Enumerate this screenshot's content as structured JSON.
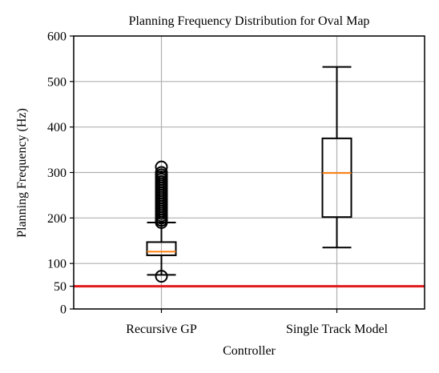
{
  "chart_data": {
    "type": "box",
    "title": "Planning Frequency Distribution for Oval Map",
    "xlabel": "Controller",
    "ylabel": "Planning Frequency (Hz)",
    "ylim": [
      0,
      600
    ],
    "yticks": [
      0,
      50,
      100,
      200,
      300,
      400,
      500,
      600
    ],
    "grid": true,
    "categories": [
      "Recursive GP",
      "Single Track Model"
    ],
    "boxes": [
      {
        "name": "Recursive GP",
        "whisker_low": 75,
        "q1": 118,
        "median": 126,
        "q3": 147,
        "whisker_high": 190,
        "outliers": [
          72,
          190,
          195,
          200,
          205,
          210,
          215,
          220,
          225,
          230,
          235,
          240,
          245,
          250,
          255,
          260,
          265,
          270,
          275,
          280,
          285,
          290,
          295,
          300,
          312
        ]
      },
      {
        "name": "Single Track Model",
        "whisker_low": 135,
        "q1": 202,
        "median": 299,
        "q3": 375,
        "whisker_high": 532,
        "outliers": []
      }
    ],
    "reference_line": {
      "value": 50,
      "color": "#e31a1c"
    },
    "colors": {
      "box": "#000000",
      "median": "#ff7f0e",
      "grid": "#b0b0b0",
      "reference": "#e31a1c"
    }
  }
}
